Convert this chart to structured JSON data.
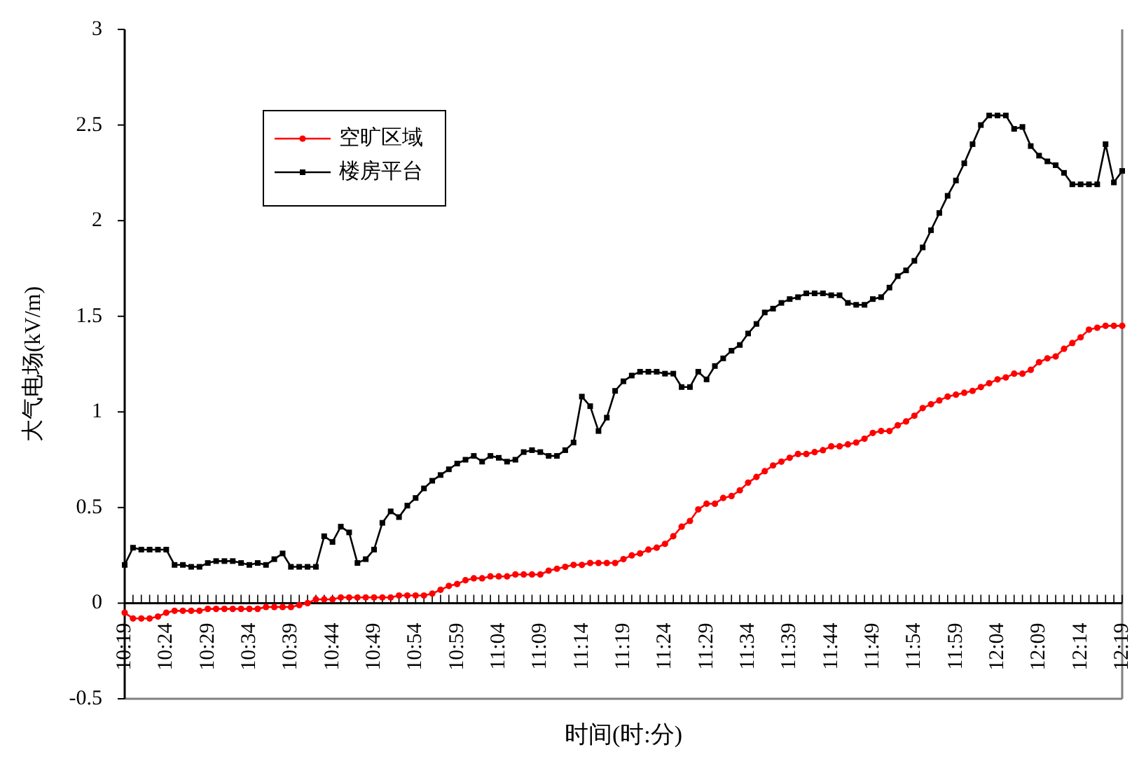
{
  "chart_data": {
    "type": "line",
    "xlabel": "时间(时:分)",
    "ylabel": "大气电场(kV/m)",
    "categories": [
      "10:19",
      null,
      null,
      null,
      null,
      "10:24",
      null,
      null,
      null,
      null,
      "10:29",
      null,
      null,
      null,
      null,
      "10:34",
      null,
      null,
      null,
      null,
      "10:39",
      null,
      null,
      null,
      null,
      "10:44",
      null,
      null,
      null,
      null,
      "10:49",
      null,
      null,
      null,
      null,
      "10:54",
      null,
      null,
      null,
      null,
      "10:59",
      null,
      null,
      null,
      null,
      "11:04",
      null,
      null,
      null,
      null,
      "11:09",
      null,
      null,
      null,
      null,
      "11:14",
      null,
      null,
      null,
      null,
      "11:19",
      null,
      null,
      null,
      null,
      "11:24",
      null,
      null,
      null,
      null,
      "11:29",
      null,
      null,
      null,
      null,
      "11:34",
      null,
      null,
      null,
      null,
      "11:39",
      null,
      null,
      null,
      null,
      "11:44",
      null,
      null,
      null,
      null,
      "11:49",
      null,
      null,
      null,
      null,
      "11:54",
      null,
      null,
      null,
      null,
      "11:59",
      null,
      null,
      null,
      null,
      "12:04",
      null,
      null,
      null,
      null,
      "12:09",
      null,
      null,
      null,
      null,
      "12:14",
      null,
      null,
      null,
      null,
      "12:19"
    ],
    "series": [
      {
        "name": "空旷区域",
        "color": "#ff0000",
        "marker": "circle",
        "values": [
          -0.05,
          -0.08,
          -0.08,
          -0.08,
          -0.07,
          -0.05,
          -0.04,
          -0.04,
          -0.04,
          -0.04,
          -0.03,
          -0.03,
          -0.03,
          -0.03,
          -0.03,
          -0.03,
          -0.03,
          -0.02,
          -0.02,
          -0.02,
          -0.02,
          -0.01,
          0,
          0.02,
          0.02,
          0.02,
          0.03,
          0.03,
          0.03,
          0.03,
          0.03,
          0.03,
          0.03,
          0.04,
          0.04,
          0.04,
          0.04,
          0.05,
          0.07,
          0.09,
          0.1,
          0.12,
          0.13,
          0.13,
          0.14,
          0.14,
          0.14,
          0.15,
          0.15,
          0.15,
          0.15,
          0.17,
          0.18,
          0.19,
          0.2,
          0.2,
          0.21,
          0.21,
          0.21,
          0.21,
          0.23,
          0.25,
          0.26,
          0.28,
          0.29,
          0.31,
          0.35,
          0.4,
          0.43,
          0.49,
          0.52,
          0.52,
          0.55,
          0.56,
          0.59,
          0.63,
          0.66,
          0.69,
          0.72,
          0.74,
          0.76,
          0.78,
          0.78,
          0.79,
          0.8,
          0.82,
          0.82,
          0.83,
          0.84,
          0.86,
          0.89,
          0.9,
          0.9,
          0.93,
          0.95,
          0.98,
          1.02,
          1.04,
          1.06,
          1.08,
          1.09,
          1.1,
          1.11,
          1.13,
          1.15,
          1.17,
          1.18,
          1.2,
          1.2,
          1.22,
          1.26,
          1.28,
          1.29,
          1.33,
          1.36,
          1.39,
          1.43,
          1.44,
          1.45,
          1.45,
          1.45
        ]
      },
      {
        "name": "楼房平台",
        "color": "#000000",
        "marker": "square",
        "values": [
          0.2,
          0.29,
          0.28,
          0.28,
          0.28,
          0.28,
          0.2,
          0.2,
          0.19,
          0.19,
          0.21,
          0.22,
          0.22,
          0.22,
          0.21,
          0.2,
          0.21,
          0.2,
          0.23,
          0.26,
          0.19,
          0.19,
          0.19,
          0.19,
          0.35,
          0.32,
          0.4,
          0.37,
          0.21,
          0.23,
          0.28,
          0.42,
          0.48,
          0.45,
          0.51,
          0.55,
          0.6,
          0.64,
          0.67,
          0.7,
          0.73,
          0.75,
          0.77,
          0.74,
          0.77,
          0.76,
          0.74,
          0.75,
          0.79,
          0.8,
          0.79,
          0.77,
          0.77,
          0.8,
          0.84,
          1.08,
          1.03,
          0.9,
          0.97,
          1.11,
          1.16,
          1.19,
          1.21,
          1.21,
          1.21,
          1.2,
          1.2,
          1.13,
          1.13,
          1.21,
          1.17,
          1.24,
          1.28,
          1.32,
          1.35,
          1.41,
          1.46,
          1.52,
          1.54,
          1.57,
          1.59,
          1.6,
          1.62,
          1.62,
          1.62,
          1.61,
          1.61,
          1.57,
          1.56,
          1.56,
          1.59,
          1.6,
          1.65,
          1.71,
          1.74,
          1.79,
          1.86,
          1.95,
          2.04,
          2.13,
          2.21,
          2.3,
          2.4,
          2.5,
          2.55,
          2.55,
          2.55,
          2.48,
          2.49,
          2.39,
          2.34,
          2.31,
          2.29,
          2.25,
          2.19,
          2.19,
          2.19,
          2.19,
          2.4,
          2.2,
          2.26
        ]
      }
    ],
    "ylim": [
      -0.5,
      3
    ],
    "yticks": [
      -0.5,
      0,
      0.5,
      1,
      1.5,
      2,
      2.5,
      3
    ],
    "legend": "top left"
  }
}
